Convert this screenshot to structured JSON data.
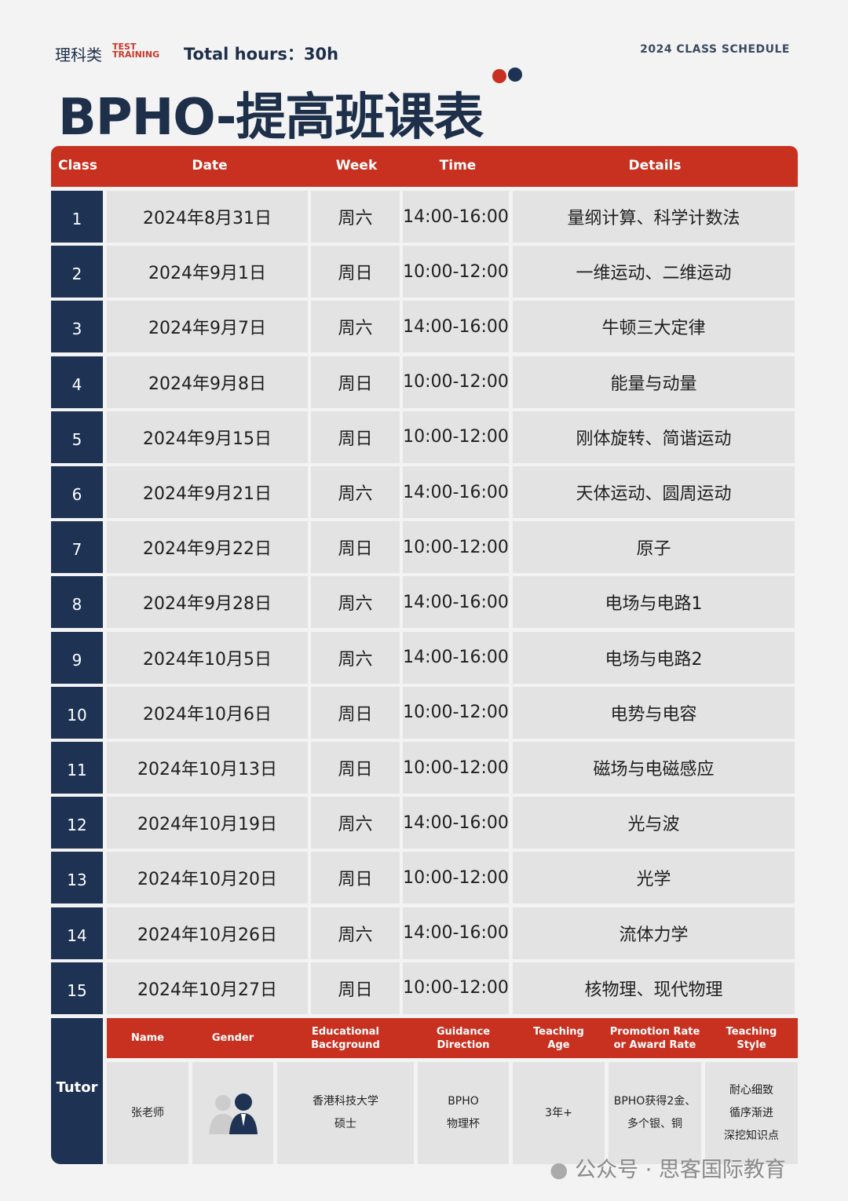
{
  "header": {
    "category": "理科类",
    "tag_line1": "TEST",
    "tag_line2": "TRAINING",
    "total_hours": "Total hours：30h",
    "year_label": "2024 CLASS SCHEDULE",
    "title": "BPHO-提高班课表"
  },
  "colors": {
    "accent": "#c8301f",
    "navy": "#1e3253"
  },
  "table": {
    "columns": [
      "Class",
      "Date",
      "Week",
      "Time",
      "Details"
    ],
    "rows": [
      [
        "1",
        "2024年8月31日",
        "周六",
        "14:00-16:00",
        "量纲计算、科学计数法"
      ],
      [
        "2",
        "2024年9月1日",
        "周日",
        "10:00-12:00",
        "一维运动、二维运动"
      ],
      [
        "3",
        "2024年9月7日",
        "周六",
        "14:00-16:00",
        "牛顿三大定律"
      ],
      [
        "4",
        "2024年9月8日",
        "周日",
        "10:00-12:00",
        "能量与动量"
      ],
      [
        "5",
        "2024年9月15日",
        "周日",
        "10:00-12:00",
        "刚体旋转、简谐运动"
      ],
      [
        "6",
        "2024年9月21日",
        "周六",
        "14:00-16:00",
        "天体运动、圆周运动"
      ],
      [
        "7",
        "2024年9月22日",
        "周日",
        "10:00-12:00",
        "原子"
      ],
      [
        "8",
        "2024年9月28日",
        "周六",
        "14:00-16:00",
        "电场与电路1"
      ],
      [
        "9",
        "2024年10月5日",
        "周六",
        "14:00-16:00",
        "电场与电路2"
      ],
      [
        "10",
        "2024年10月6日",
        "周日",
        "10:00-12:00",
        "电势与电容"
      ],
      [
        "11",
        "2024年10月13日",
        "周日",
        "10:00-12:00",
        "磁场与电磁感应"
      ],
      [
        "12",
        "2024年10月19日",
        "周六",
        "14:00-16:00",
        "光与波"
      ],
      [
        "13",
        "2024年10月20日",
        "周日",
        "10:00-12:00",
        "光学"
      ],
      [
        "14",
        "2024年10月26日",
        "周六",
        "14:00-16:00",
        "流体力学"
      ],
      [
        "15",
        "2024年10月27日",
        "周日",
        "10:00-12:00",
        "核物理、现代物理"
      ]
    ]
  },
  "tutor": {
    "label": "Tutor",
    "columns": [
      "Name",
      "Gender",
      "Educational\nBackground",
      "Guidance\nDirection",
      "Teaching\nAge",
      "Promotion Rate\nor Award Rate",
      "Teaching\nStyle"
    ],
    "values": [
      "张老师",
      "",
      "香港科技大学\n硕士",
      "BPHO\n物理杯",
      "3年+",
      "BPHO获得2金、\n多个银、铜",
      "耐心细致\n循序渐进\n深挖知识点"
    ],
    "gender_icon": "male-female-avatar-icon"
  },
  "watermark": "公众号 · 思客国际教育"
}
